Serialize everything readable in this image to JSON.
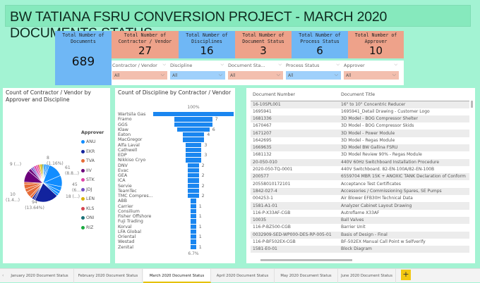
{
  "title": "BW TATIANA FSRU CONVERSION PROJECT - MARCH 2020 DOCUMENTS STATUS",
  "kpis": [
    {
      "label": "Total Number of Documents",
      "value": "689",
      "color": "#6fb7f5"
    },
    {
      "label": "Total Number of Contractor / Vendor",
      "value": "27",
      "color": "#eea28a"
    },
    {
      "label": "Total Number of Disciplines",
      "value": "16",
      "color": "#6fb7f5"
    },
    {
      "label": "Total Number of Document Status",
      "value": "3",
      "color": "#eea28a"
    },
    {
      "label": "Total Number of Process Status",
      "value": "6",
      "color": "#6fb7f5"
    },
    {
      "label": "Total Number of Approver",
      "value": "10",
      "color": "#eea28a"
    }
  ],
  "slicers": [
    {
      "label": "Contractor / Vendor",
      "value": "All"
    },
    {
      "label": "Discipline",
      "value": "All"
    },
    {
      "label": "Document Sta...",
      "value": "All"
    },
    {
      "label": "Process Status",
      "value": "All"
    },
    {
      "label": "Approver",
      "value": "All"
    }
  ],
  "chart_data": [
    {
      "type": "pie",
      "title": "Count of Contractor / Vendor by Approver and Discipline",
      "legend_title": "Approver",
      "legend_position": "right",
      "legend": [
        {
          "name": "ANU",
          "color": "#118dff"
        },
        {
          "name": "EKR",
          "color": "#12239e"
        },
        {
          "name": "TVA",
          "color": "#e66c37"
        },
        {
          "name": "IIV",
          "color": "#6b007b"
        },
        {
          "name": "STK",
          "color": "#e044a7"
        },
        {
          "name": "JDJ",
          "color": "#744ec2"
        },
        {
          "name": "LEN",
          "color": "#d9b300"
        },
        {
          "name": "KLS",
          "color": "#d64550"
        },
        {
          "name": "ONI",
          "color": "#197278"
        },
        {
          "name": "RIZ",
          "color": "#1aab40"
        }
      ],
      "data_labels": [
        {
          "value": 8,
          "label": "8",
          "pct": "(1.16%)"
        },
        {
          "value": 61,
          "label": "61",
          "pct": "(8.8...)"
        },
        {
          "value": 45,
          "label": "45",
          "pct": "(6...."
        },
        {
          "value": 18,
          "label": "18 (...)",
          "pct": ""
        },
        {
          "value": 94,
          "label": "94",
          "pct": "(13.64%)"
        },
        {
          "value": 10,
          "label": "10",
          "pct": "(1.4...)"
        },
        {
          "value": 9,
          "label": "9 (...)",
          "pct": ""
        }
      ],
      "total": 689
    },
    {
      "type": "bar",
      "subtype": "funnel",
      "title": "Count of Discipline by Contractor / Vendor",
      "top_label": "100%",
      "bottom_label": "6.7%",
      "categories": [
        "Wartsila Gas",
        "Framo",
        "GGS",
        "Klaw",
        "Eaton",
        "MacGregor",
        "Alfa Laval",
        "Cathwell",
        "EDP",
        "Nikkiso Cryo",
        "DNV",
        "Evac",
        "GEA",
        "ICA",
        "Servie",
        "TeamTec",
        "TMC Compres...",
        "ABB",
        "Carrier",
        "Consilium",
        "Fisher Offshore",
        "Fuji Trading",
        "Korval",
        "LFA Global",
        "Oriental",
        "Westad",
        "Zenital"
      ],
      "values": [
        15,
        7,
        7,
        6,
        4,
        4,
        3,
        3,
        3,
        3,
        2,
        2,
        2,
        2,
        2,
        2,
        2,
        1,
        1,
        1,
        1,
        1,
        1,
        1,
        1,
        1,
        1
      ],
      "shown_labels": [
        "",
        "7",
        "",
        "6",
        "4",
        "",
        "3",
        "",
        "3",
        "",
        "2",
        "",
        "2",
        "",
        "2",
        "",
        "2",
        "",
        "1",
        "",
        "1",
        "",
        "1",
        "",
        "1",
        "",
        "1"
      ],
      "color": "#1a86f0"
    }
  ],
  "table": {
    "columns": [
      "Document Number",
      "Document Title"
    ],
    "rows": [
      [
        "16-10SPL001",
        "16\" to 10\" Concentric Reducer"
      ],
      [
        "1695941",
        "1695941_Detail Drawing - Customer Logo"
      ],
      [
        "1681336",
        "3D Model - BOG Compressor Shelter"
      ],
      [
        "1670467",
        "3D Model - BOG Compressor Skids"
      ],
      [
        "1671207",
        "3D Model - Power Module"
      ],
      [
        "1642695",
        "3D Model - Regas Module"
      ],
      [
        "1669635",
        "3D Model BW Gallina FSRU"
      ],
      [
        "1681132",
        "3D Model Review 90% - Regas Module"
      ],
      [
        "20-050-010",
        "440V 60Hz Switchboard Installation Procedure"
      ],
      [
        "2020-050-TQ-0001",
        "440V Switchboard. 82-EN-100A/82-EN-100B"
      ],
      [
        "200577",
        "6559704 MBR 15K + ANOXIC TANK Declaration of Conform"
      ],
      [
        "20558010172101",
        "Acceptance Test Certificates"
      ],
      [
        "1842-027-4",
        "Accessories / Commissioning Spares, SE Pumps"
      ],
      [
        "004253-1",
        "Air Blower EFB30H Technical Data"
      ],
      [
        "1581-A1-01",
        "Analyzer Cabinet Layout Drawing"
      ],
      [
        "116-P-X33AF-CGB",
        "Autroflame X33AF"
      ],
      [
        "10035",
        "Ball Valves"
      ],
      [
        "116-P-BZ500-CGB",
        "Barrier Unit"
      ],
      [
        "0032909-SED-WP000-DES-RP-005-01",
        "Basis of Design - Final"
      ],
      [
        "116-P-BF502EX-CGB",
        "BF-502EX Manual Call Point w Selfverify"
      ],
      [
        "1581-E0-01",
        "Block Diagram"
      ]
    ]
  },
  "tabs": [
    "January 2020 Document Status",
    "February 2020 Document Status",
    "March 2020 Document Status",
    "April 2020 Document Status",
    "May 2020 Document Status",
    "June 2020 Document Status"
  ],
  "active_tab": "March 2020 Document Status",
  "add_tab": "+"
}
